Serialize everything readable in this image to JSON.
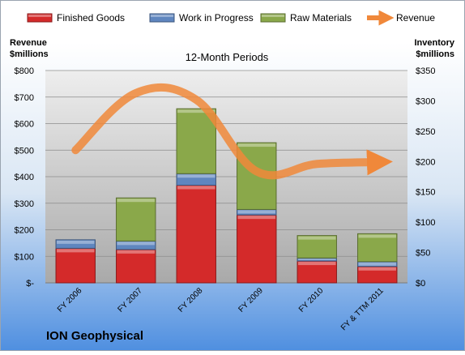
{
  "chart_data": {
    "type": "bar",
    "stacked": true,
    "title": "12-Month Periods",
    "company": "ION Geophysical",
    "left_axis": {
      "label_line1": "Revenue",
      "label_line2": "$millions",
      "range": [
        0,
        800
      ],
      "ticks": [
        {
          "value": 0,
          "label": "$-"
        },
        {
          "value": 100,
          "label": "$100"
        },
        {
          "value": 200,
          "label": "$200"
        },
        {
          "value": 300,
          "label": "$300"
        },
        {
          "value": 400,
          "label": "$400"
        },
        {
          "value": 500,
          "label": "$500"
        },
        {
          "value": 600,
          "label": "$600"
        },
        {
          "value": 700,
          "label": "$700"
        },
        {
          "value": 800,
          "label": "$800"
        }
      ]
    },
    "right_axis": {
      "label_line1": "Inventory",
      "label_line2": "$millions",
      "range": [
        0,
        350
      ],
      "ticks": [
        {
          "value": 0,
          "label": "$0"
        },
        {
          "value": 50,
          "label": "$50"
        },
        {
          "value": 100,
          "label": "$100"
        },
        {
          "value": 150,
          "label": "$150"
        },
        {
          "value": 200,
          "label": "$200"
        },
        {
          "value": 250,
          "label": "$250"
        },
        {
          "value": 300,
          "label": "$300"
        },
        {
          "value": 350,
          "label": "$350"
        }
      ]
    },
    "categories": [
      "FY 2006",
      "FY 2007",
      "FY 2008",
      "FY 2009",
      "FY 2010",
      "FY & TTM 2011"
    ],
    "series": [
      {
        "name": "Finished Goods",
        "axis": "right",
        "kind": "bar",
        "color": "#d42a2a",
        "values": [
          57,
          55,
          161,
          112,
          36,
          27
        ]
      },
      {
        "name": "Work in Progress",
        "axis": "right",
        "kind": "bar",
        "color": "#5f86bf",
        "values": [
          14,
          14,
          19,
          9,
          5,
          8
        ]
      },
      {
        "name": "Raw Materials",
        "axis": "right",
        "kind": "bar",
        "color": "#8aa84a",
        "values": [
          0,
          71,
          107,
          110,
          37,
          46
        ]
      },
      {
        "name": "Revenue",
        "axis": "left",
        "kind": "line",
        "color": "#f0883a",
        "values": [
          500,
          715,
          690,
          420,
          448,
          455
        ]
      }
    ],
    "legend_position": "top",
    "grid": true
  }
}
